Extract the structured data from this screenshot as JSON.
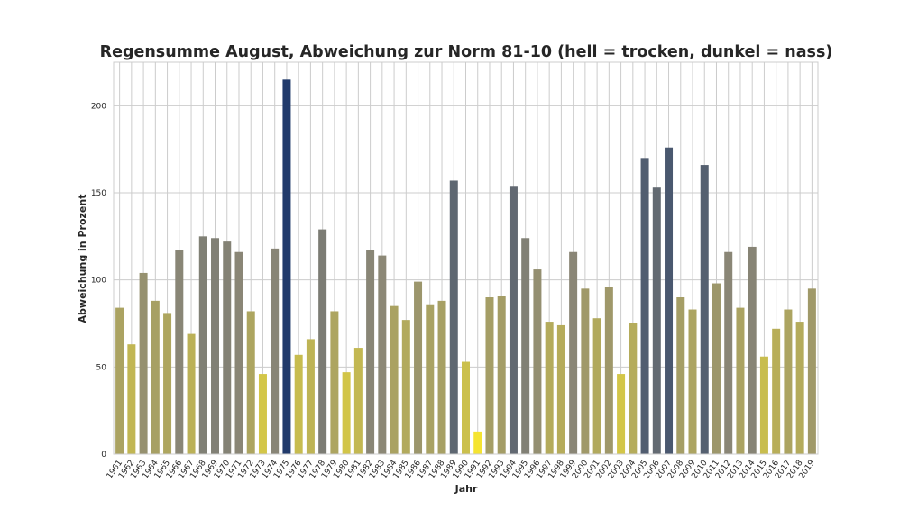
{
  "chart_data": {
    "type": "bar",
    "title": "Regensumme August, Abweichung zur Norm 81-10 (hell = trocken, dunkel = nass)",
    "xlabel": "Jahr",
    "ylabel": "Abweichung in Prozent",
    "ylim": [
      0,
      225
    ],
    "yticks": [
      0,
      50,
      100,
      150,
      200
    ],
    "grid": true,
    "color_scale": {
      "dry": "#f5e431",
      "wet": "#213a6b",
      "note": ""
    },
    "categories": [
      "1961",
      "1962",
      "1963",
      "1964",
      "1965",
      "1966",
      "1967",
      "1968",
      "1969",
      "1970",
      "1971",
      "1972",
      "1973",
      "1974",
      "1975",
      "1976",
      "1977",
      "1978",
      "1979",
      "1980",
      "1981",
      "1982",
      "1983",
      "1984",
      "1985",
      "1986",
      "1987",
      "1988",
      "1989",
      "1990",
      "1991",
      "1992",
      "1993",
      "1994",
      "1995",
      "1996",
      "1997",
      "1998",
      "1999",
      "2000",
      "2001",
      "2002",
      "2003",
      "2004",
      "2005",
      "2006",
      "2007",
      "2008",
      "2009",
      "2010",
      "2011",
      "2012",
      "2013",
      "2014",
      "2015",
      "2016",
      "2017",
      "2018",
      "2019"
    ],
    "values": [
      84,
      63,
      104,
      88,
      81,
      117,
      69,
      125,
      124,
      122,
      116,
      82,
      46,
      118,
      215,
      57,
      66,
      129,
      82,
      47,
      61,
      117,
      114,
      85,
      77,
      99,
      86,
      88,
      157,
      53,
      13,
      90,
      91,
      154,
      124,
      106,
      76,
      74,
      116,
      95,
      78,
      96,
      46,
      75,
      170,
      153,
      176,
      90,
      83,
      166,
      98,
      116,
      84,
      119,
      56,
      72,
      83,
      76,
      95
    ]
  }
}
